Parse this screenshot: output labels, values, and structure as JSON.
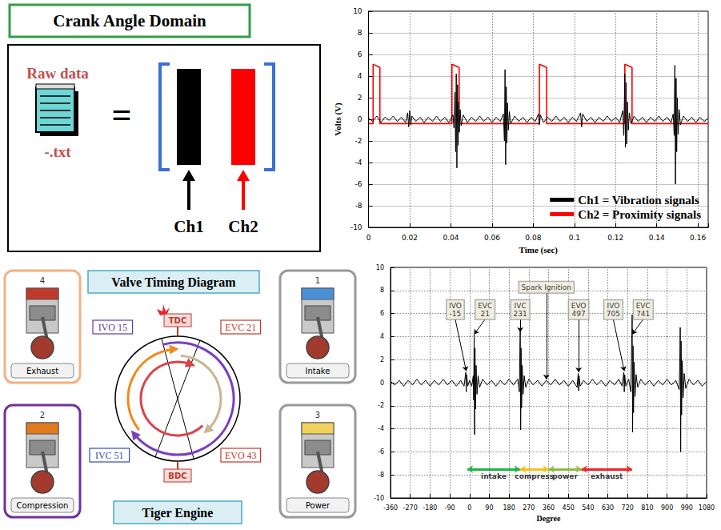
{
  "crank_angle_panel": {
    "title": "Crank Angle Domain",
    "raw_data_label": "Raw data",
    "file_label": "-.txt",
    "equals": "=",
    "channels": [
      {
        "label": "Ch1",
        "color": "#000000"
      },
      {
        "label": "Ch2",
        "color": "#ff0000"
      }
    ]
  },
  "valve_timing_panel": {
    "title": "Valve Timing Diagram",
    "caption": "Tiger Engine",
    "tdc": "TDC",
    "bdc": "BDC",
    "events": [
      {
        "label": "IVO 15",
        "color": "#5b3fa6"
      },
      {
        "label": "EVC 21",
        "color": "#c0392b"
      },
      {
        "label": "IVC 51",
        "color": "#2f4fb0"
      },
      {
        "label": "EVO 43",
        "color": "#c0392b"
      }
    ],
    "strokes": [
      {
        "number": "1",
        "label": "Intake"
      },
      {
        "number": "2",
        "label": "Compression"
      },
      {
        "number": "3",
        "label": "Power"
      },
      {
        "number": "4",
        "label": "Exhaust"
      }
    ]
  },
  "chart_data": [
    {
      "type": "line",
      "xlabel": "Time (sec)",
      "ylabel": "Volts (V)",
      "xlim": [
        0,
        0.165
      ],
      "xticks": [
        0,
        0.02,
        0.04,
        0.06,
        0.08,
        0.1,
        0.12,
        0.14,
        0.16
      ],
      "ylim": [
        -10,
        10
      ],
      "yticks": [
        -10,
        -8,
        -6,
        -4,
        -2,
        0,
        2,
        4,
        6,
        8,
        10
      ],
      "grid": true,
      "legend": "lower right",
      "series": [
        {
          "name": "Ch1 = Vibration signals",
          "color": "#000000",
          "x": [
            0,
            0.002,
            0.004,
            0.006,
            0.008,
            0.01,
            0.012,
            0.014,
            0.016,
            0.018,
            0.019,
            0.0195,
            0.02,
            0.0205,
            0.021,
            0.023,
            0.025,
            0.027,
            0.029,
            0.031,
            0.033,
            0.035,
            0.037,
            0.039,
            0.041,
            0.0415,
            0.042,
            0.0423,
            0.0426,
            0.0429,
            0.0432,
            0.0435,
            0.0438,
            0.0441,
            0.0445,
            0.045,
            0.046,
            0.048,
            0.05,
            0.052,
            0.054,
            0.056,
            0.058,
            0.06,
            0.062,
            0.064,
            0.0655,
            0.066,
            0.0663,
            0.0666,
            0.0669,
            0.0672,
            0.0675,
            0.0679,
            0.0684,
            0.069,
            0.071,
            0.073,
            0.075,
            0.077,
            0.079,
            0.081,
            0.0825,
            0.083,
            0.0835,
            0.085,
            0.087,
            0.089,
            0.091,
            0.093,
            0.095,
            0.097,
            0.099,
            0.101,
            0.103,
            0.1035,
            0.104,
            0.106,
            0.108,
            0.11,
            0.112,
            0.114,
            0.116,
            0.118,
            0.12,
            0.122,
            0.1235,
            0.124,
            0.1245,
            0.1248,
            0.1251,
            0.1254,
            0.1258,
            0.1262,
            0.1267,
            0.1275,
            0.129,
            0.131,
            0.133,
            0.135,
            0.137,
            0.139,
            0.141,
            0.143,
            0.145,
            0.147,
            0.148,
            0.1485,
            0.1488,
            0.1491,
            0.1494,
            0.1497,
            0.15,
            0.1504,
            0.1509,
            0.1515,
            0.153,
            0.155,
            0.157,
            0.159,
            0.161,
            0.163,
            0.165
          ],
          "values": [
            0.1,
            -0.2,
            0.3,
            -0.3,
            0.2,
            -0.1,
            0.3,
            -0.2,
            0.2,
            -0.3,
            0.6,
            -0.7,
            0.8,
            -0.5,
            0.3,
            -0.2,
            0.2,
            -0.3,
            0.2,
            -0.2,
            0.3,
            -0.2,
            0.2,
            -0.3,
            0.4,
            -0.8,
            2.5,
            -3.0,
            4.2,
            -4.5,
            3.2,
            -2.4,
            1.6,
            -1.2,
            0.9,
            -0.6,
            0.4,
            -0.3,
            0.2,
            -0.2,
            0.3,
            -0.2,
            0.2,
            -0.3,
            0.2,
            -0.2,
            0.5,
            -2.0,
            4.6,
            -4.2,
            3.0,
            -2.2,
            1.5,
            -1.0,
            0.7,
            -0.4,
            0.3,
            -0.2,
            0.2,
            -0.3,
            0.2,
            -0.2,
            0.5,
            -0.5,
            0.4,
            -0.3,
            0.2,
            -0.2,
            0.3,
            -0.2,
            0.2,
            -0.3,
            0.2,
            -0.2,
            0.6,
            -0.7,
            0.5,
            -0.2,
            0.2,
            -0.3,
            0.2,
            -0.2,
            0.3,
            -0.2,
            0.2,
            -0.3,
            0.8,
            -1.5,
            4.2,
            -2.6,
            3.4,
            -2.3,
            1.6,
            -1.0,
            0.6,
            -0.4,
            0.3,
            -0.2,
            0.2,
            -0.3,
            0.2,
            -0.2,
            0.3,
            -0.2,
            0.2,
            -0.3,
            0.5,
            -1.5,
            5.0,
            -6.0,
            3.8,
            -3.0,
            2.0,
            -1.4,
            0.9,
            -0.5,
            0.3,
            -0.2,
            0.2,
            -0.3,
            0.2,
            -0.2,
            0.1
          ]
        },
        {
          "name": "Ch2 = Proximity signals",
          "color": "#ff0000",
          "x": [
            0,
            0.0022,
            0.0022,
            0.0055,
            0.0055,
            0.0405,
            0.0405,
            0.044,
            0.044,
            0.083,
            0.083,
            0.0865,
            0.0865,
            0.1245,
            0.1245,
            0.128,
            0.128,
            0.165
          ],
          "values": [
            -0.4,
            -0.4,
            5.1,
            4.8,
            -0.4,
            -0.4,
            5.1,
            4.8,
            -0.4,
            -0.4,
            5.1,
            4.8,
            -0.4,
            -0.4,
            5.1,
            4.8,
            -0.4,
            -0.4
          ]
        }
      ]
    },
    {
      "type": "line",
      "xlabel": "Degree",
      "xlim": [
        -360,
        1080
      ],
      "xticks": [
        -360,
        -270,
        -180,
        -90,
        0,
        90,
        180,
        270,
        360,
        450,
        540,
        630,
        720,
        810,
        900,
        990,
        1080
      ],
      "ylim": [
        -10,
        10
      ],
      "yticks": [
        -10,
        -8,
        -6,
        -4,
        -2,
        0,
        2,
        4,
        6,
        8,
        10
      ],
      "grid": true,
      "series": [
        {
          "color": "#000000",
          "x": [
            -360,
            -340,
            -320,
            -300,
            -280,
            -260,
            -240,
            -220,
            -200,
            -180,
            -160,
            -140,
            -120,
            -100,
            -80,
            -60,
            -40,
            -25,
            -17,
            -15,
            -13,
            -8,
            0,
            10,
            17,
            19,
            21,
            23,
            25,
            27,
            30,
            34,
            39,
            46,
            60,
            80,
            100,
            120,
            140,
            160,
            180,
            200,
            220,
            227,
            229,
            231,
            233,
            235,
            237,
            240,
            244,
            249,
            256,
            270,
            290,
            310,
            330,
            350,
            370,
            390,
            410,
            430,
            450,
            470,
            490,
            495,
            497,
            499,
            504,
            520,
            540,
            560,
            580,
            600,
            620,
            640,
            660,
            680,
            695,
            703,
            705,
            707,
            712,
            725,
            735,
            738,
            741,
            743,
            745,
            747,
            750,
            754,
            759,
            766,
            780,
            800,
            820,
            840,
            860,
            880,
            900,
            920,
            940,
            955,
            958,
            960,
            962,
            964,
            966,
            969,
            973,
            978,
            985,
            1000,
            1020,
            1040,
            1060,
            1080
          ],
          "values": [
            0.1,
            -0.2,
            0.2,
            -0.3,
            0.2,
            -0.2,
            0.3,
            -0.2,
            0.2,
            -0.3,
            0.2,
            -0.2,
            0.3,
            -0.2,
            0.2,
            -0.3,
            0.2,
            -0.3,
            0.9,
            -0.8,
            0.7,
            -0.3,
            0.2,
            -0.3,
            0.6,
            -1.5,
            4.2,
            -4.5,
            3.0,
            -2.3,
            1.5,
            -1.0,
            0.6,
            -0.4,
            0.3,
            -0.2,
            0.2,
            -0.3,
            0.2,
            -0.2,
            0.3,
            -0.2,
            0.3,
            -0.8,
            2.0,
            4.6,
            -4.1,
            3.0,
            -2.2,
            1.5,
            -1.0,
            0.6,
            -0.4,
            0.3,
            -0.2,
            0.2,
            -0.3,
            0.2,
            -0.2,
            0.3,
            -0.2,
            0.2,
            -0.3,
            0.2,
            -0.4,
            0.8,
            -0.7,
            0.6,
            -0.3,
            0.2,
            -0.2,
            0.3,
            -0.2,
            0.2,
            -0.3,
            0.2,
            -0.2,
            0.3,
            -0.3,
            0.9,
            -0.8,
            0.7,
            -0.3,
            0.3,
            -0.8,
            2.5,
            5.9,
            -4.3,
            3.2,
            -2.6,
            1.8,
            -1.2,
            0.7,
            -0.4,
            0.3,
            -0.2,
            0.2,
            -0.3,
            0.2,
            -0.2,
            0.3,
            -0.2,
            0.2,
            -0.6,
            1.8,
            4.8,
            -6.0,
            3.6,
            -2.8,
            1.9,
            -1.3,
            0.8,
            -0.5,
            0.3,
            -0.2,
            0.2,
            -0.3,
            0.1
          ]
        }
      ],
      "annotations": [
        {
          "text": "IVO -15",
          "x": -15,
          "y": 1.0
        },
        {
          "text": "EVC 21",
          "x": 21,
          "y": 4.2
        },
        {
          "text": "IVC 231",
          "x": 231,
          "y": 4.4
        },
        {
          "text": "Spark Ignition",
          "x": 350,
          "y": 0.3
        },
        {
          "text": "EVO 497",
          "x": 497,
          "y": 0.9
        },
        {
          "text": "IVO 705",
          "x": 705,
          "y": 1.0
        },
        {
          "text": "EVC 741",
          "x": 741,
          "y": 4.2
        }
      ],
      "phases": [
        {
          "label": "intake",
          "from": -10,
          "to": 230,
          "color": "#22b14c"
        },
        {
          "label": "compress",
          "from": 230,
          "to": 360,
          "color": "#f0c419"
        },
        {
          "label": "power",
          "from": 360,
          "to": 510,
          "color": "#8fbc3f"
        },
        {
          "label": "exhaust",
          "from": 510,
          "to": 740,
          "color": "#e8262b"
        }
      ]
    }
  ]
}
